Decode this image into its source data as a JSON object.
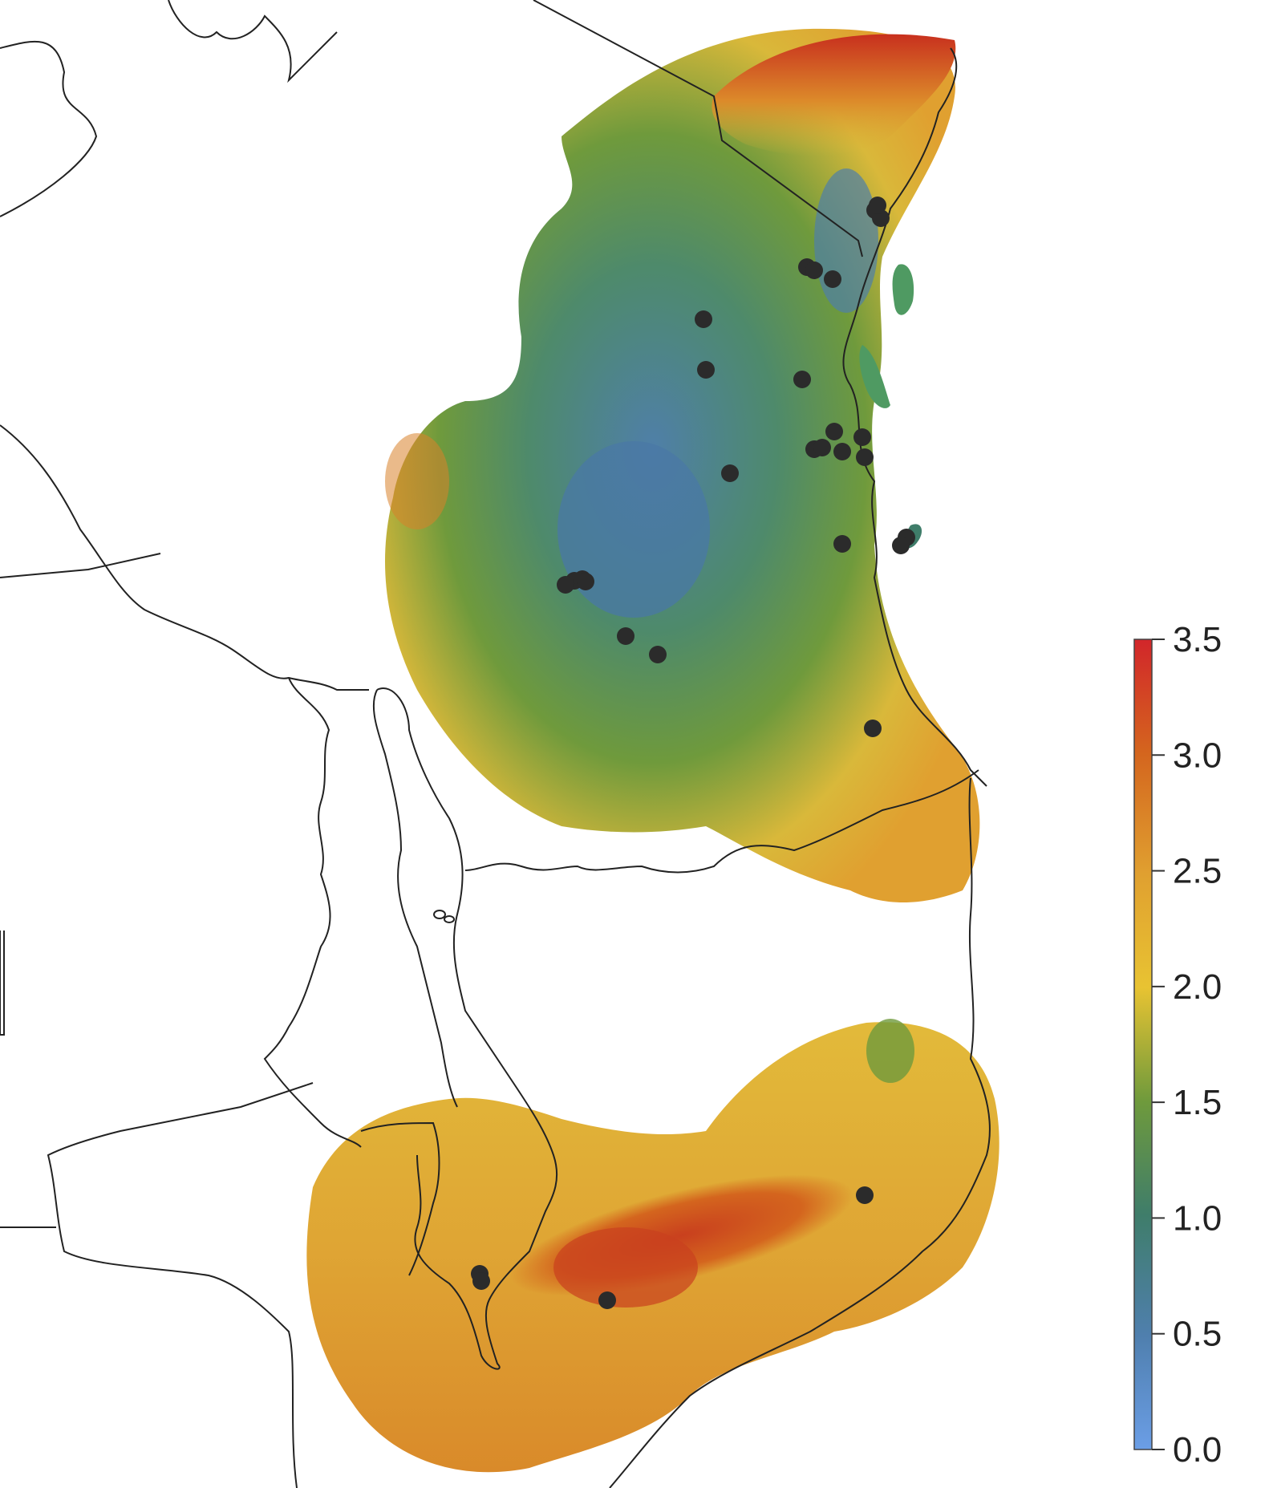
{
  "map": {
    "colorbar": {
      "min": 0.0,
      "max": 3.5,
      "ticks": [
        "0.0",
        "0.5",
        "1.0",
        "1.5",
        "2.0",
        "2.5",
        "3.0",
        "3.5"
      ],
      "tick_values": [
        0.0,
        0.5,
        1.0,
        1.5,
        2.0,
        2.5,
        3.0,
        3.5
      ],
      "colors": [
        "#6b9ee6",
        "#4f7fae",
        "#3f7d6a",
        "#6f9a3c",
        "#e8c332",
        "#e0a030",
        "#d4651e",
        "#d2262a"
      ]
    },
    "fill_colors": {
      "north_low": "#4f7fa8",
      "north_mid": "#5a8d55",
      "north_edge": "#d9b83a",
      "north_high": "#c8301e",
      "south_base": "#dfa534",
      "south_high": "#c9401e",
      "point": "#2b2b2b",
      "border": "#222222"
    },
    "symbols": {
      "occurrence": "filled-circle"
    }
  }
}
